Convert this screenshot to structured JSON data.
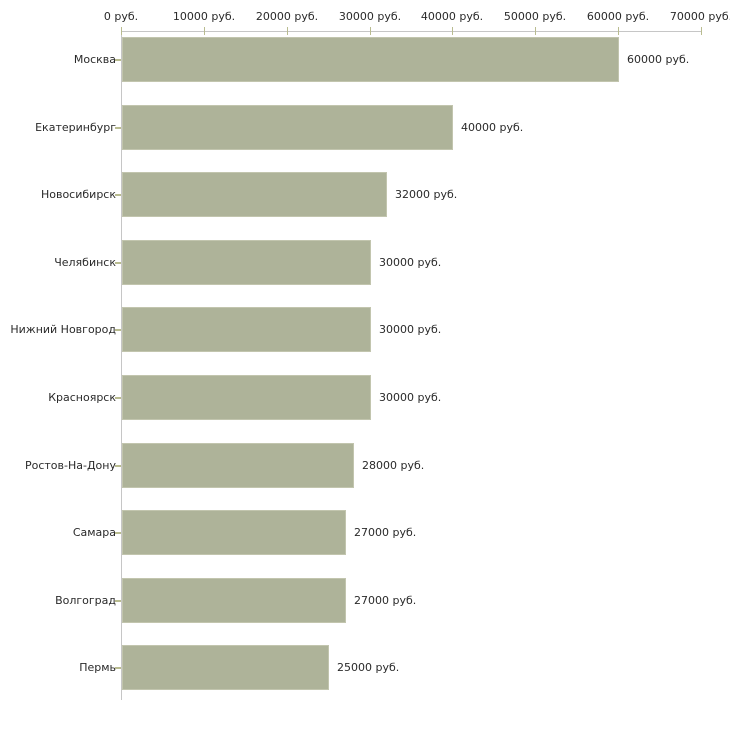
{
  "chart_data": {
    "type": "bar",
    "orientation": "horizontal",
    "title": "",
    "categories": [
      "Москва",
      "Екатеринбург",
      "Новосибирск",
      "Челябинск",
      "Нижний Новгород",
      "Красноярск",
      "Ростов-На-Дону",
      "Самара",
      "Волгоград",
      "Пермь"
    ],
    "values": [
      60000,
      40000,
      32000,
      30000,
      30000,
      30000,
      28000,
      27000,
      27000,
      25000
    ],
    "value_labels": [
      "60000 руб.",
      "40000 руб.",
      "32000 руб.",
      "30000 руб.",
      "30000 руб.",
      "30000 руб.",
      "28000 руб.",
      "27000 руб.",
      "27000 руб.",
      "25000 руб."
    ],
    "x_ticks": [
      0,
      10000,
      20000,
      30000,
      40000,
      50000,
      60000,
      70000
    ],
    "x_tick_labels": [
      "0 руб.",
      "10000 руб.",
      "20000 руб.",
      "30000 руб.",
      "40000 руб.",
      "50000 руб.",
      "60000 руб.",
      "70000 руб."
    ],
    "xlim": [
      0,
      70000
    ],
    "unit": "руб.",
    "xlabel": "",
    "ylabel": "",
    "grid": false,
    "legend": false,
    "colors": {
      "bar_fill": "#aeb399",
      "bar_border": "#c2c5ae",
      "axis_line": "#c6c6c6",
      "tick_mark": "#b9bc90",
      "text": "#2a2a2a",
      "background": "#ffffff"
    }
  }
}
